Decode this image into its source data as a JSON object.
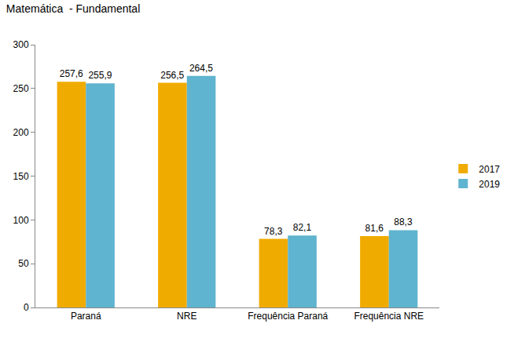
{
  "chart_data": {
    "type": "bar",
    "title": "Matemática  - Fundamental",
    "categories": [
      "Paraná",
      "NRE",
      "Frequência Paraná",
      "Frequência NRE"
    ],
    "series": [
      {
        "name": "2017",
        "color": "#f0ab00",
        "values": [
          257.6,
          256.5,
          78.3,
          81.6
        ],
        "value_labels": [
          "257,6",
          "256,5",
          "78,3",
          "81,6"
        ]
      },
      {
        "name": "2019",
        "color": "#5fb4cf",
        "values": [
          255.9,
          264.5,
          82.1,
          88.3
        ],
        "value_labels": [
          "255,9",
          "264,5",
          "82,1",
          "88,3"
        ]
      }
    ],
    "ylim": [
      0,
      300
    ],
    "yticks": [
      0,
      50,
      100,
      150,
      200,
      250,
      300
    ],
    "grid": false,
    "legend": "right",
    "data_labels": true
  }
}
